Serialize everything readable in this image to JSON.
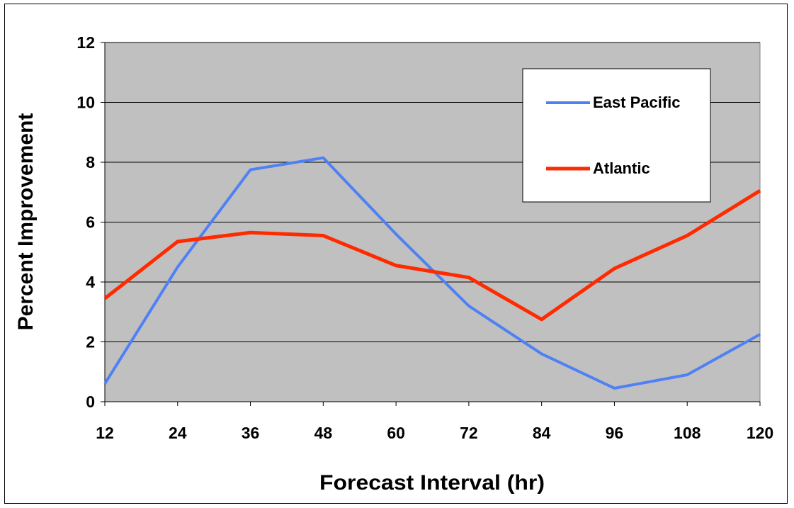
{
  "chart_data": {
    "type": "line",
    "x": [
      12,
      24,
      36,
      48,
      60,
      72,
      84,
      96,
      108,
      120
    ],
    "series": [
      {
        "name": "East Pacific",
        "color": "#4F81F5",
        "values": [
          0.6,
          4.5,
          7.75,
          8.15,
          5.6,
          3.2,
          1.6,
          0.45,
          0.9,
          2.25
        ]
      },
      {
        "name": "Atlantic",
        "color": "#FF2A00",
        "values": [
          3.45,
          5.35,
          5.65,
          5.55,
          4.55,
          4.15,
          2.75,
          4.45,
          5.55,
          7.05
        ]
      }
    ],
    "xlabel": "Forecast Interval (hr)",
    "ylabel": "Percent Improvement",
    "ylim": [
      0,
      12
    ],
    "yticks": [
      "0",
      "2",
      "4",
      "6",
      "8",
      "10",
      "12"
    ],
    "xticks": [
      "12",
      "24",
      "36",
      "48",
      "60",
      "72",
      "84",
      "96",
      "108",
      "120"
    ],
    "grid": true,
    "plot_background": "#C0C0C0",
    "legend_position": "top-right"
  }
}
